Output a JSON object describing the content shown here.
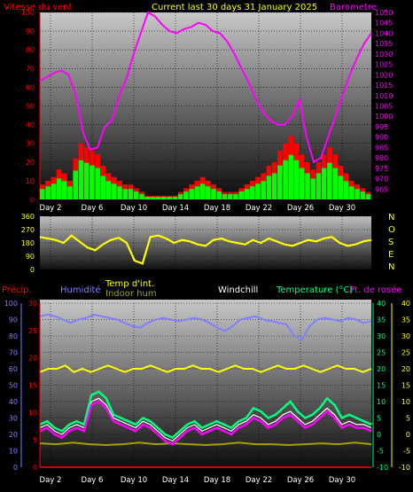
{
  "header": {
    "title": "Current last 30 days 31 January 2025",
    "wind_label": "Vitesse du vent",
    "baro_label": "Barometre"
  },
  "colors": {
    "wind_red": "#ff0000",
    "wind_green": "#00ff00",
    "baro": "#ff00ff",
    "dir": "#ffff00",
    "humidity": "#8080ff",
    "temp_int": "#ffff00",
    "indoor_hum": "#a0a000",
    "windchill": "#ffffff",
    "temperature": "#00ff80",
    "dewpoint": "#ff00ff",
    "precip": "#ff0000"
  },
  "x_axis": {
    "day_labels": [
      "Day 2",
      "Day 6",
      "Day 10",
      "Day 14",
      "Day 18",
      "Day 22",
      "Day 26",
      "Day 30"
    ]
  },
  "compass": [
    "N",
    "O",
    "S",
    "E",
    "N"
  ],
  "bottom_labels": {
    "precip": "Précip.",
    "humidity": "Humidité",
    "temp_int": "Temp d'int.",
    "indoor_hum": "Indoor hum",
    "windchill": "Windchill",
    "temperature": "Temperature (°C)",
    "dewpoint": "Pt. de rosée"
  },
  "chart_data": [
    {
      "type": "area",
      "series": [
        {
          "name": "Vitesse du vent",
          "values": [
            8,
            10,
            12,
            16,
            14,
            10,
            22,
            30,
            28,
            26,
            24,
            18,
            14,
            12,
            10,
            8,
            8,
            6,
            4,
            2,
            2,
            2,
            2,
            2,
            2,
            4,
            6,
            8,
            10,
            12,
            10,
            8,
            6,
            4,
            4,
            4,
            6,
            8,
            10,
            12,
            14,
            18,
            20,
            26,
            30,
            34,
            30,
            24,
            20,
            16,
            20,
            24,
            28,
            24,
            18,
            14,
            10,
            8,
            6,
            4
          ]
        },
        {
          "name": "Barometre",
          "values": [
            1017,
            1019,
            1021,
            1022,
            1020,
            1010,
            992,
            984,
            985,
            995,
            998,
            1010,
            1018,
            1030,
            1040,
            1050,
            1048,
            1044,
            1041,
            1040,
            1042,
            1043,
            1045,
            1044,
            1041,
            1040,
            1036,
            1030,
            1023,
            1016,
            1008,
            1002,
            998,
            996,
            996,
            1000,
            1008,
            990,
            978,
            980,
            990,
            1000,
            1010,
            1020,
            1028,
            1035,
            1040
          ]
        }
      ],
      "y_left": {
        "min": 0,
        "max": 100,
        "ticks": [
          0,
          10,
          20,
          30,
          40,
          50,
          60,
          70,
          80,
          90,
          100
        ]
      },
      "y_right": {
        "min": 960,
        "max": 1050,
        "ticks": [
          965,
          970,
          975,
          980,
          985,
          990,
          995,
          1000,
          1005,
          1010,
          1015,
          1020,
          1025,
          1030,
          1035,
          1040,
          1045,
          1050
        ]
      }
    },
    {
      "type": "scatter",
      "series": [
        {
          "name": "Wind direction",
          "values": [
            220,
            210,
            200,
            180,
            230,
            190,
            150,
            130,
            170,
            200,
            215,
            180,
            60,
            40,
            220,
            230,
            210,
            180,
            200,
            190,
            170,
            160,
            200,
            210,
            190,
            180,
            170,
            200,
            180,
            210,
            190,
            170,
            160,
            180,
            200,
            190,
            210,
            220,
            180,
            160,
            170,
            190,
            200
          ]
        }
      ],
      "y_left": {
        "min": 0,
        "max": 360,
        "ticks": [
          0,
          90,
          180,
          270,
          360
        ]
      }
    },
    {
      "type": "line",
      "series": [
        {
          "name": "Humidité",
          "values": [
            92,
            93,
            92,
            90,
            88,
            90,
            91,
            93,
            92,
            91,
            90,
            88,
            86,
            85,
            88,
            90,
            91,
            90,
            89,
            90,
            91,
            90,
            88,
            85,
            83,
            86,
            90,
            91,
            92,
            90,
            89,
            88,
            87,
            80,
            78,
            86,
            90,
            91,
            90,
            89,
            91,
            90,
            88,
            89
          ]
        },
        {
          "name": "Temp d'int.",
          "values": [
            19,
            20,
            20,
            21,
            19,
            20,
            19,
            20,
            21,
            20,
            19,
            20,
            20,
            21,
            20,
            19,
            20,
            20,
            21,
            20,
            20,
            19,
            20,
            21,
            20,
            20,
            19,
            20,
            21,
            20,
            20,
            21,
            20,
            19,
            20,
            21,
            20,
            20,
            19,
            20
          ]
        },
        {
          "name": "Indoor hum",
          "values": [
            14.5,
            14,
            15,
            14,
            13.5,
            14,
            15,
            14,
            14.5,
            14,
            13.5,
            14,
            15,
            14,
            14,
            13.5,
            14,
            14.5,
            14,
            15,
            14
          ]
        },
        {
          "name": "Windchill",
          "values": [
            2,
            3,
            1,
            0,
            2,
            3,
            2,
            10,
            11,
            9,
            5,
            4,
            3,
            2,
            4,
            3,
            1,
            -1,
            -2,
            0,
            2,
            3,
            1,
            2,
            3,
            2,
            1,
            3,
            4,
            6,
            5,
            3,
            4,
            6,
            7,
            5,
            3,
            4,
            6,
            8,
            6,
            3,
            4,
            3,
            3,
            2
          ]
        },
        {
          "name": "Temperature (°C)",
          "values": [
            3,
            4,
            2,
            1,
            3,
            4,
            3,
            12,
            13,
            11,
            6,
            5,
            4,
            3,
            5,
            4,
            2,
            0,
            -1,
            1,
            3,
            4,
            2,
            3,
            4,
            3,
            2,
            4,
            5,
            8,
            7,
            5,
            6,
            8,
            10,
            7,
            5,
            6,
            8,
            11,
            9,
            5,
            6,
            5,
            4,
            3
          ]
        },
        {
          "name": "Pt. de rosée",
          "values": [
            1,
            2,
            0,
            -1,
            1,
            2,
            1,
            9,
            10,
            8,
            4,
            3,
            2,
            1,
            3,
            2,
            0,
            -2,
            -3,
            -1,
            1,
            2,
            0,
            1,
            2,
            1,
            0,
            2,
            3,
            5,
            4,
            2,
            3,
            5,
            6,
            4,
            2,
            3,
            5,
            7,
            5,
            2,
            3,
            2,
            2,
            1
          ]
        },
        {
          "name": "Précip.",
          "values": [
            0,
            0,
            0,
            0,
            0,
            0,
            0,
            0,
            0,
            0,
            0,
            0,
            0,
            0,
            0,
            0,
            0,
            0,
            0,
            0,
            0,
            0,
            0,
            0,
            0,
            0,
            0,
            0,
            0,
            0
          ]
        }
      ],
      "y_humidity": {
        "min": 0,
        "max": 100,
        "ticks": [
          0,
          10,
          20,
          30,
          40,
          50,
          60,
          70,
          80,
          90,
          100
        ]
      },
      "y_precip": {
        "min": 0,
        "max": 30,
        "ticks": [
          0,
          5,
          10,
          15,
          20,
          25,
          30
        ]
      },
      "y_temp": {
        "min": -10,
        "max": 40,
        "ticks": [
          -10,
          -5,
          0,
          5,
          10,
          15,
          20,
          25,
          30,
          35,
          40
        ]
      }
    }
  ]
}
